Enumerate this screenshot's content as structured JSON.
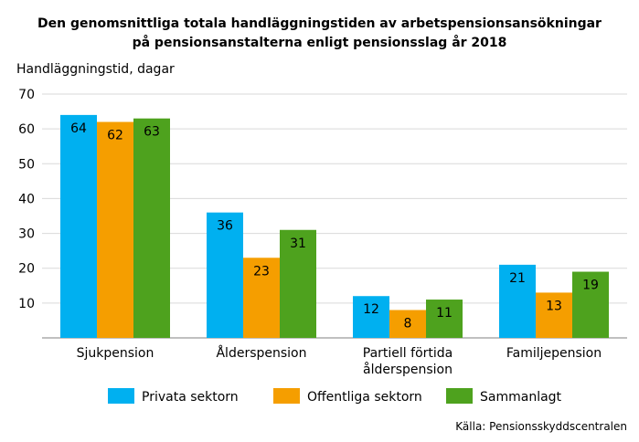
{
  "chart_data": {
    "type": "bar",
    "title_lines": [
      "Den genomsnittliga totala handläggningstiden av arbetspensionsansökningar",
      "på pensionsanstalterna enligt pensionsslag år 2018"
    ],
    "ylabel": "Handläggningstid, dagar",
    "ylim": [
      0,
      70
    ],
    "yticks": [
      10,
      20,
      30,
      40,
      50,
      60,
      70
    ],
    "grid": true,
    "categories": [
      [
        "Sjukpension"
      ],
      [
        "Ålderspension"
      ],
      [
        "Partiell förtida",
        "ålderspension"
      ],
      [
        "Familjepension"
      ]
    ],
    "series": [
      {
        "name": "Privata sektorn",
        "color": "#00B0F0",
        "values": [
          64,
          36,
          12,
          21
        ]
      },
      {
        "name": "Offentliga sektorn",
        "color": "#F59E00",
        "values": [
          62,
          23,
          8,
          13
        ]
      },
      {
        "name": "Sammanlagt",
        "color": "#4EA21E",
        "values": [
          63,
          31,
          11,
          19
        ]
      }
    ],
    "legend_position": "bottom",
    "source": "Källa: Pensionsskyddscentralen"
  }
}
